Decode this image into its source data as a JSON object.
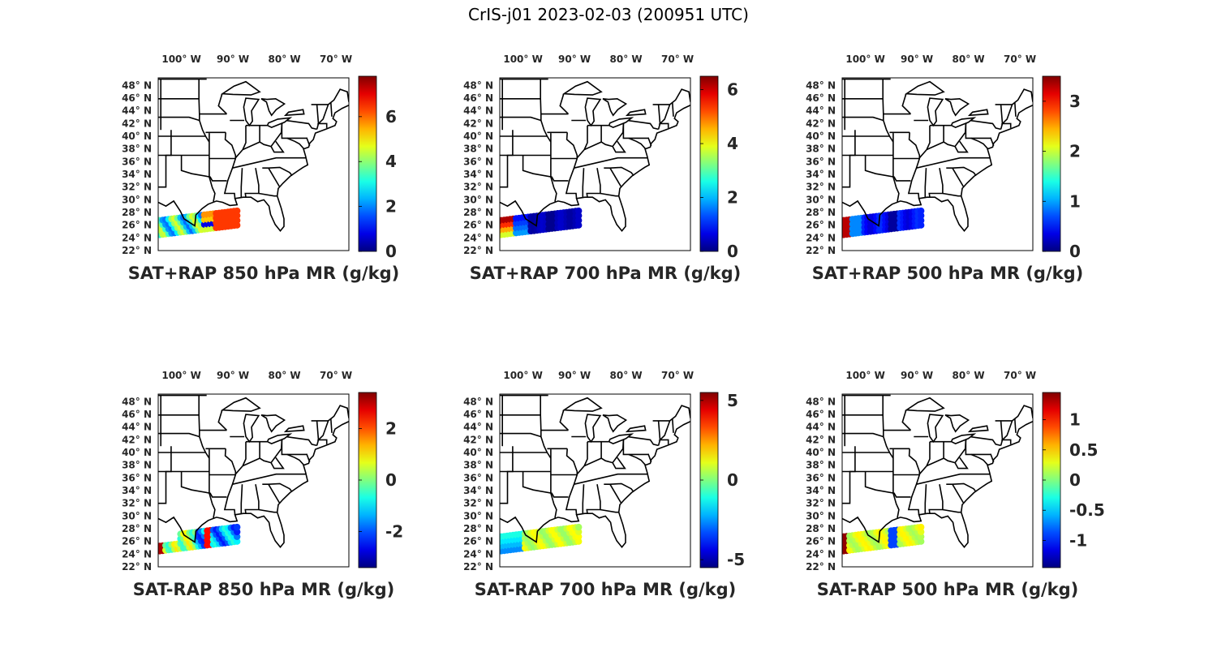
{
  "title": "CrIS-j01 2023-02-03 (200951 UTC)",
  "lon_ticks": [
    "100° W",
    "90° W",
    "80° W",
    "70° W"
  ],
  "lat_ticks": [
    "48° N",
    "46° N",
    "44° N",
    "42° N",
    "40° N",
    "38° N",
    "36° N",
    "34° N",
    "32° N",
    "30° N",
    "28° N",
    "26° N",
    "24° N",
    "22° N"
  ],
  "colormap": "jet",
  "panels": [
    {
      "id": "sat-rap-850",
      "title": "SAT+RAP 850 hPa MR (g/kg)",
      "clim": [
        0,
        7.8
      ],
      "ticks": [
        "0",
        "2",
        "4",
        "6"
      ],
      "tick_values": [
        0,
        2,
        4,
        6
      ],
      "swath_profile": "sum850"
    },
    {
      "id": "sat-rap-700",
      "title": "SAT+RAP 700 hPa MR (g/kg)",
      "clim": [
        0,
        6.5
      ],
      "ticks": [
        "0",
        "2",
        "4",
        "6"
      ],
      "tick_values": [
        0,
        2,
        4,
        6
      ],
      "swath_profile": "sum700"
    },
    {
      "id": "sat-rap-500",
      "title": "SAT+RAP 500 hPa MR (g/kg)",
      "clim": [
        0,
        3.5
      ],
      "ticks": [
        "0",
        "1",
        "2",
        "3"
      ],
      "tick_values": [
        0,
        1,
        2,
        3
      ],
      "swath_profile": "sum500"
    },
    {
      "id": "sat-minus-rap-850",
      "title": "SAT-RAP 850 hPa MR (g/kg)",
      "clim": [
        -3.4,
        3.4
      ],
      "ticks": [
        "-2",
        "0",
        "2"
      ],
      "tick_values": [
        -2,
        0,
        2
      ],
      "swath_profile": "diff850"
    },
    {
      "id": "sat-minus-rap-700",
      "title": "SAT-RAP 700 hPa MR (g/kg)",
      "clim": [
        -5.5,
        5.5
      ],
      "ticks": [
        "-5",
        "0",
        "5"
      ],
      "tick_values": [
        -5,
        0,
        5
      ],
      "swath_profile": "diff700"
    },
    {
      "id": "sat-minus-rap-500",
      "title": "SAT-RAP 500 hPa MR (g/kg)",
      "clim": [
        -1.45,
        1.45
      ],
      "ticks": [
        "-1",
        "-0.5",
        "0",
        "0.5",
        "1"
      ],
      "tick_values": [
        -1,
        -0.5,
        0,
        0.5,
        1
      ],
      "swath_profile": "diff500"
    }
  ]
}
